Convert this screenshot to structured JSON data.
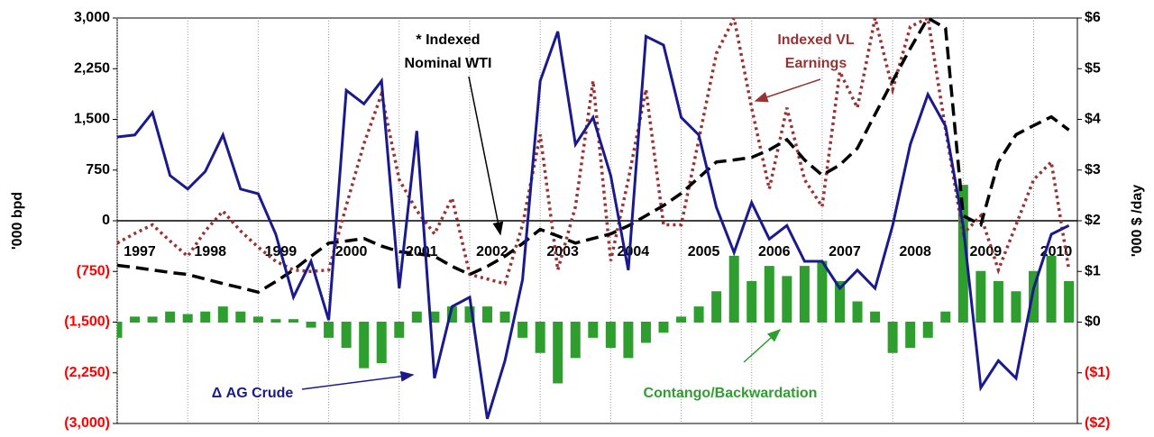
{
  "chart_data": {
    "type": "line",
    "ylabel": "'000 bpd",
    "y2label": "'000 $ /day",
    "x": [
      1997,
      1997.25,
      1997.5,
      1997.75,
      1998,
      1998.25,
      1998.5,
      1998.75,
      1999,
      1999.25,
      1999.5,
      1999.75,
      2000,
      2000.25,
      2000.5,
      2000.75,
      2001,
      2001.25,
      2001.5,
      2001.75,
      2002,
      2002.25,
      2002.5,
      2002.75,
      2003,
      2003.25,
      2003.5,
      2003.75,
      2004,
      2004.25,
      2004.5,
      2004.75,
      2005,
      2005.25,
      2005.5,
      2005.75,
      2006,
      2006.25,
      2006.5,
      2006.75,
      2007,
      2007.25,
      2007.5,
      2007.75,
      2008,
      2008.25,
      2008.5,
      2008.75,
      2009,
      2009.25,
      2009.5,
      2009.75,
      2010,
      2010.25,
      2010.5
    ],
    "xlim": [
      1997,
      2010.62
    ],
    "xticks": [
      1997,
      1998,
      1999,
      2000,
      2001,
      2002,
      2003,
      2004,
      2005,
      2006,
      2007,
      2008,
      2009,
      2010
    ],
    "ylim": [
      -3000,
      3000
    ],
    "yticks": [
      {
        "value": -3000,
        "label": "(3,000)"
      },
      {
        "value": -2250,
        "label": "(2,250)"
      },
      {
        "value": -1500,
        "label": "(1,500)"
      },
      {
        "value": -750,
        "label": "(750)"
      },
      0,
      {
        "value": 750,
        "label": "750"
      },
      {
        "value": 1500,
        "label": "1,500"
      },
      {
        "value": 2250,
        "label": "2,250"
      },
      {
        "value": 3000,
        "label": "3,000"
      }
    ],
    "y2lim": [
      -2,
      6
    ],
    "y2ticks": [
      {
        "value": -2,
        "label": "($2)"
      },
      {
        "value": -1,
        "label": "($1)"
      },
      {
        "value": 0,
        "label": "$0"
      },
      {
        "value": 1,
        "label": "$1"
      },
      {
        "value": 2,
        "label": "$2"
      },
      {
        "value": 3,
        "label": "$3"
      },
      {
        "value": 4,
        "label": "$4"
      },
      {
        "value": 5,
        "label": "$5"
      },
      {
        "value": 6,
        "label": "$6"
      }
    ],
    "grid": true,
    "negative_label_color": "#ff0000",
    "series": [
      {
        "type": "bar",
        "axis": "y2",
        "color": "#2e9e2e",
        "values": [
          -0.3,
          0.1,
          0.1,
          0.2,
          0.15,
          0.2,
          0.3,
          0.2,
          0.1,
          0.05,
          0.05,
          -0.1,
          -0.3,
          -0.5,
          -0.9,
          -0.8,
          -0.3,
          0.2,
          0.2,
          0.3,
          0.3,
          0.3,
          0.2,
          -0.3,
          -0.6,
          -1.2,
          -0.7,
          -0.3,
          -0.5,
          -0.7,
          -0.4,
          -0.2,
          0.1,
          0.3,
          0.6,
          1.3,
          0.8,
          1.1,
          0.9,
          1.1,
          1.2,
          0.8,
          0.4,
          0.2,
          -0.6,
          -0.5,
          -0.3,
          0.2,
          2.7,
          1.0,
          0.8,
          0.6,
          1.0,
          1.3,
          0.8
        ]
      },
      {
        "type": "line",
        "axis": "y2",
        "color": "#993333",
        "style": "dotted",
        "values": [
          1.56,
          1.75,
          1.92,
          1.6,
          1.3,
          1.8,
          2.19,
          1.8,
          1.48,
          1.2,
          1.03,
          1.0,
          1.03,
          2.3,
          3.52,
          4.5,
          2.81,
          2.2,
          1.74,
          2.45,
          0.94,
          0.85,
          0.76,
          1.92,
          3.7,
          1.03,
          2.28,
          4.76,
          1.21,
          2.81,
          4.59,
          1.92,
          1.92,
          3.6,
          5.3,
          6.0,
          4.23,
          2.63,
          4.23,
          2.81,
          2.28,
          4.94,
          4.23,
          6.0,
          4.59,
          5.83,
          6.0,
          3.8,
          1.74,
          2.1,
          1.03,
          1.92,
          2.81,
          3.16,
          1.03
        ]
      },
      {
        "type": "line",
        "axis": "y2",
        "color": "#000000",
        "style": "dashed",
        "values": [
          1.12,
          1.08,
          1.03,
          0.98,
          0.94,
          0.85,
          0.76,
          0.68,
          0.59,
          0.8,
          1.03,
          1.3,
          1.56,
          1.6,
          1.65,
          1.5,
          1.39,
          1.35,
          1.3,
          1.1,
          0.94,
          1.1,
          1.3,
          1.55,
          1.83,
          1.7,
          1.56,
          1.65,
          1.74,
          1.9,
          2.1,
          2.3,
          2.54,
          2.85,
          3.16,
          3.2,
          3.25,
          3.4,
          3.6,
          3.2,
          2.9,
          3.1,
          3.43,
          4.1,
          4.76,
          5.4,
          6.0,
          5.8,
          2.1,
          1.92,
          3.16,
          3.7,
          3.88,
          4.05,
          3.79
        ]
      },
      {
        "type": "line",
        "color": "#1a1a8c",
        "style": "solid",
        "values": [
          1240,
          1270,
          1600,
          670,
          470,
          730,
          1270,
          470,
          400,
          -200,
          -1130,
          -600,
          -1470,
          1930,
          1730,
          2070,
          -1000,
          1330,
          -2330,
          -1270,
          -1130,
          -2930,
          -2070,
          -870,
          2070,
          2800,
          1130,
          1530,
          670,
          -730,
          2730,
          2600,
          1530,
          1270,
          200,
          -470,
          270,
          -270,
          -70,
          -600,
          -600,
          -1000,
          -730,
          -1000,
          -70,
          1130,
          1870,
          1400,
          -70,
          -2470,
          -2070,
          -2330,
          -1000,
          -200,
          -70
        ]
      }
    ],
    "annotations": [
      {
        "lines": [
          "* Indexed",
          "Nominal WTI"
        ],
        "color": "#000000"
      },
      {
        "lines": [
          "Indexed VL",
          "Earnings"
        ],
        "color": "#993333"
      },
      {
        "lines": [
          "Δ AG Crude"
        ],
        "color": "#1a1a8c"
      },
      {
        "lines": [
          "Contango/Backwardation"
        ],
        "color": "#2e9e2e"
      }
    ]
  }
}
